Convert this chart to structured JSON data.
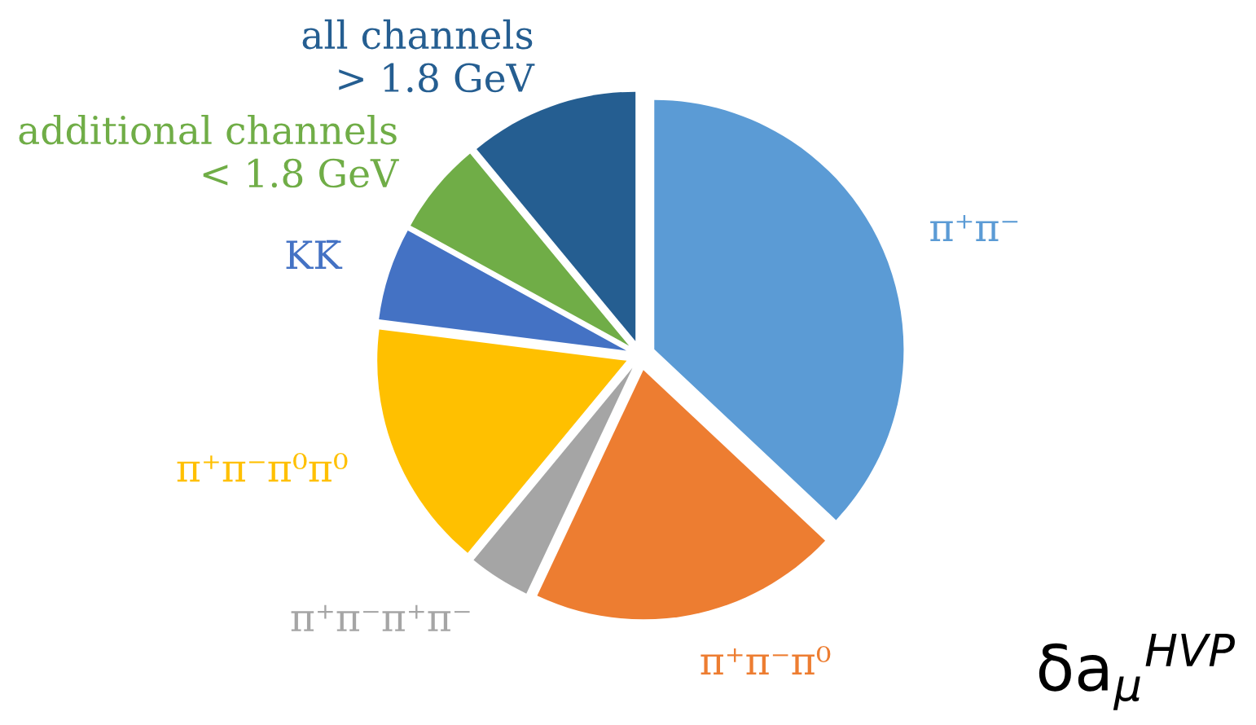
{
  "chart_data": {
    "type": "pie",
    "categories": [
      "π⁺π⁻",
      "π⁺π⁻π⁰",
      "π⁺π⁻π⁺π⁻",
      "π⁺π⁻π⁰π⁰",
      "KK̄",
      "additional channels\n< 1.8 GeV",
      "all channels\n> 1.8 GeV"
    ],
    "values": [
      37,
      20,
      4,
      16,
      6,
      6,
      11
    ],
    "colors": [
      "#5b9bd5",
      "#ed7d31",
      "#a5a5a5",
      "#ffc000",
      "#4472c4",
      "#70ad47",
      "#255e91"
    ],
    "annotations": [
      "δa$_{μ}$$^{HVP}$"
    ],
    "legend": false
  }
}
